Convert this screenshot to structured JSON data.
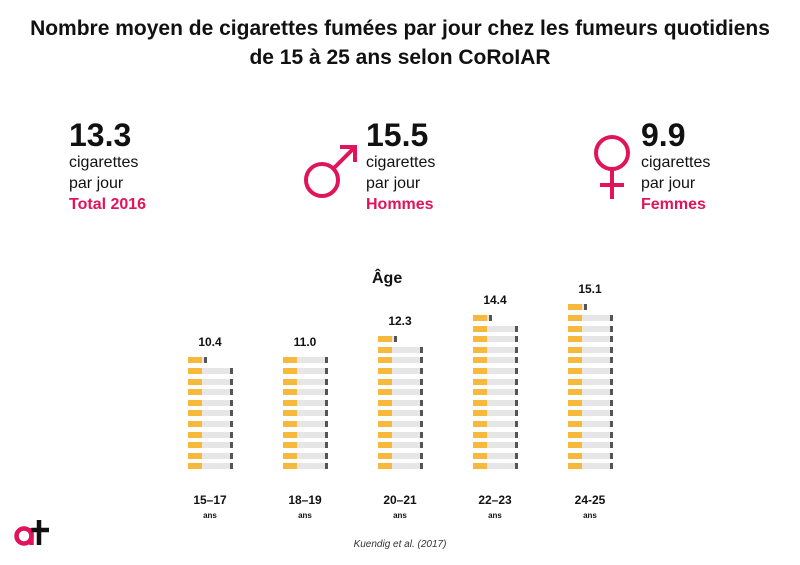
{
  "title": {
    "line1": "Nombre moyen de cigarettes fumées par jour chez les fumeurs quotidiens",
    "line2": "de 15 à 25 ans selon CoRoIAR"
  },
  "stats": [
    {
      "value": "13.3",
      "line1": "cigarettes",
      "line2": "par jour",
      "label": "Total 2016"
    },
    {
      "value": "15.5",
      "line1": "cigarettes",
      "line2": "par jour",
      "label": "Hommes"
    },
    {
      "value": "9.9",
      "line1": "cigarettes",
      "line2": "par jour",
      "label": "Femmes"
    }
  ],
  "colors": {
    "accent": "#e0145a",
    "filter": "#f6b93b",
    "paper": "#e6e6e6",
    "ash": "#555555",
    "text": "#111111"
  },
  "icons": [
    "male-symbol-icon",
    "female-symbol-icon",
    "cigarette-icon",
    "at-logo-icon"
  ],
  "chart_data": {
    "type": "bar",
    "title": "Âge",
    "categories": [
      "15–17",
      "18–19",
      "20–21",
      "22–23",
      "24-25"
    ],
    "unit": "ans",
    "values": [
      10.4,
      11.0,
      12.3,
      14.4,
      15.1
    ],
    "value_labels": [
      "10.4",
      "11.0",
      "12.3",
      "14.4",
      "15.1"
    ],
    "mark": "cigarettes"
  },
  "source": "Kuendig et al. (2017)"
}
